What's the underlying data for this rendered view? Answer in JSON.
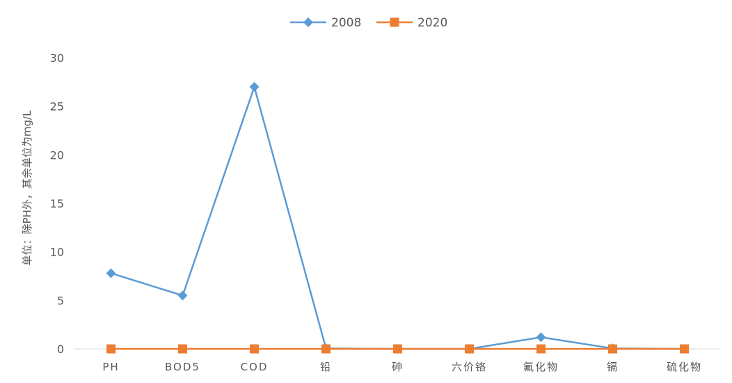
{
  "chart_data": {
    "type": "line",
    "title": "",
    "xlabel": "",
    "ylabel": "单位：除PH外，其余单位为mg/L",
    "categories": [
      "PH",
      "BOD5",
      "COD",
      "铅",
      "砷",
      "六价铬",
      "氟化物",
      "镉",
      "硫化物"
    ],
    "ylim": [
      0,
      30
    ],
    "yticks": [
      0,
      5,
      10,
      15,
      20,
      25,
      30
    ],
    "grid": false,
    "legend_position": "top",
    "series": [
      {
        "name": "2008",
        "color": "#5B9BD5",
        "marker": "diamond",
        "values": [
          7.8,
          5.5,
          27,
          0.05,
          0,
          0,
          1.2,
          0.05,
          0
        ]
      },
      {
        "name": "2020",
        "color": "#ED7D31",
        "marker": "square",
        "values": [
          0,
          0,
          0,
          0,
          0,
          0,
          0,
          0,
          0
        ]
      }
    ]
  }
}
